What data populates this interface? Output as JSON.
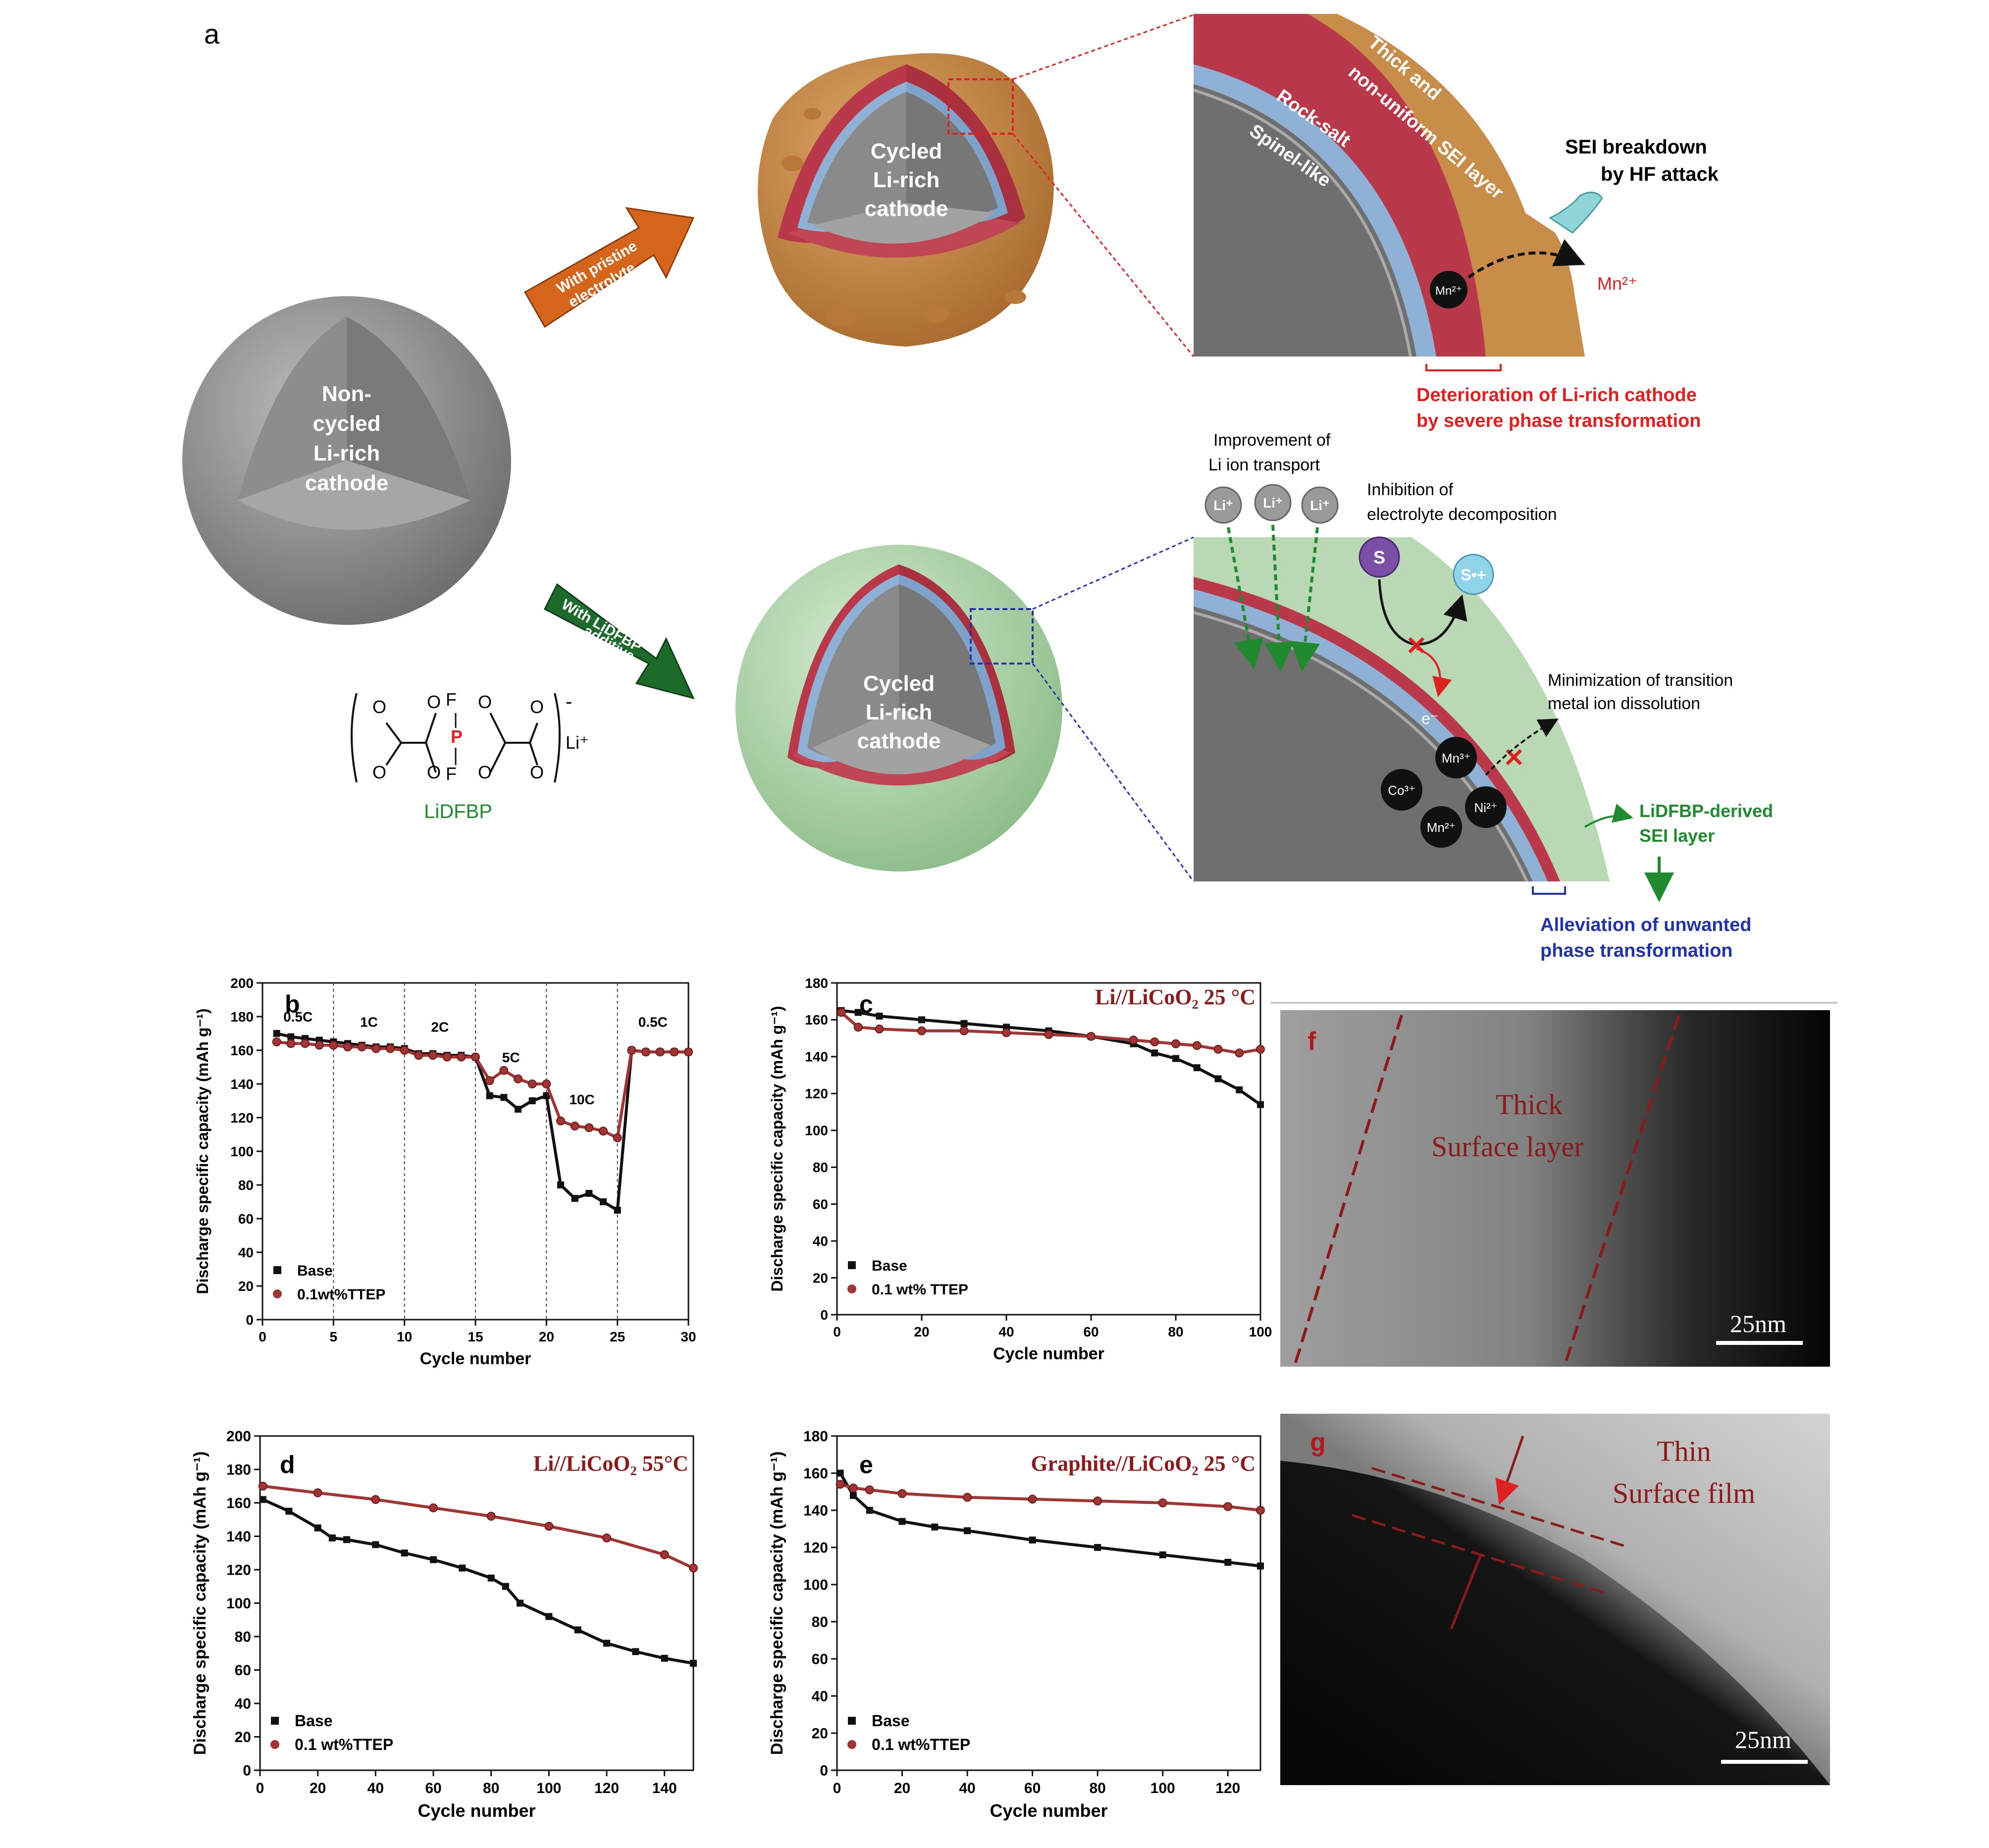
{
  "panel_a": {
    "letter": "a",
    "noncycled_label": [
      "Non-",
      "cycled",
      "Li-rich",
      "cathode"
    ],
    "cycled_label": [
      "Cycled",
      "Li-rich",
      "cathode"
    ],
    "arrow_top": [
      "With pristine",
      "electrolyte"
    ],
    "arrow_bottom": [
      "With LiDFBP",
      "additive"
    ],
    "molecule_name": "LiDFBP",
    "molecule_li": "Li⁺",
    "molecule_minus": "-",
    "zoom_top": {
      "sei": [
        "Thick and",
        "non-uniform SEI layer"
      ],
      "rocksalt": "Rock-salt",
      "spinel": "Spinel-like",
      "mn_ball": "Mn²⁺",
      "sei_breakdown": [
        "SEI breakdown",
        "by HF attack"
      ],
      "mn_out": "Mn²⁺",
      "deterioration": [
        "Deterioration of Li-rich cathode",
        "by severe phase transformation"
      ]
    },
    "zoom_bottom": {
      "li_transport": [
        "Improvement of",
        "Li ion transport"
      ],
      "li_ion": "Li⁺",
      "inhibition": [
        "Inhibition of",
        "electrolyte decomposition"
      ],
      "s": "S",
      "s_plus": "S•+",
      "e_minus": "e⁻",
      "minimization": [
        "Minimization of transition",
        "metal ion dissolution"
      ],
      "ions": [
        "Mn³⁺",
        "Co³⁺",
        "Ni²⁺",
        "Mn²⁺"
      ],
      "sei_layer": [
        "LiDFBP-derived",
        "SEI layer"
      ],
      "alleviation": [
        "Alleviation of unwanted",
        "phase transformation"
      ]
    },
    "colors": {
      "orange_shell": "#c98d4a",
      "green_shell": "#b9d9b5",
      "rocksalt": "#b9394a",
      "spinel": "#8fb1d6",
      "red_text": "#e02020",
      "green_text": "#22a03a",
      "blue_text": "#2233aa"
    }
  },
  "panel_f": {
    "letter": "f",
    "caption": [
      "Thick",
      "Surface layer"
    ],
    "scale": "25nm"
  },
  "panel_g": {
    "letter": "g",
    "caption": [
      "Thin",
      "Surface film"
    ],
    "scale": "25nm"
  },
  "chart_data": [
    {
      "panel": "b",
      "type": "line",
      "xlabel": "Cycle number",
      "ylabel": "Discharge specific capacity (mAh g⁻¹)",
      "xlim": [
        0,
        30
      ],
      "ylim": [
        0,
        200
      ],
      "xticks": [
        0,
        5,
        10,
        15,
        20,
        25,
        30
      ],
      "yticks": [
        0,
        20,
        40,
        60,
        80,
        100,
        120,
        140,
        160,
        180,
        200
      ],
      "rate_labels": [
        {
          "text": "0.5C",
          "x": 2.5,
          "y": 177
        },
        {
          "text": "1C",
          "x": 7.5,
          "y": 174
        },
        {
          "text": "2C",
          "x": 12.5,
          "y": 171
        },
        {
          "text": "5C",
          "x": 17.5,
          "y": 153
        },
        {
          "text": "10C",
          "x": 22.5,
          "y": 128
        },
        {
          "text": "0.5C",
          "x": 27.5,
          "y": 174
        }
      ],
      "dividers": [
        5,
        10,
        15,
        20,
        25
      ],
      "legend": [
        "Base",
        "0.1wt%TTEP"
      ],
      "series": [
        {
          "name": "Base",
          "color": "#111111",
          "marker": "square",
          "x": [
            1,
            2,
            3,
            4,
            5,
            6,
            7,
            8,
            9,
            10,
            11,
            12,
            13,
            14,
            15,
            16,
            17,
            18,
            19,
            20,
            21,
            22,
            23,
            24,
            25,
            26,
            27,
            28,
            29,
            30
          ],
          "values": [
            170,
            168,
            167,
            166,
            165,
            164,
            163,
            162,
            162,
            161,
            158,
            158,
            157,
            157,
            156,
            133,
            132,
            125,
            130,
            133,
            80,
            72,
            75,
            70,
            65,
            160,
            159,
            159,
            159,
            159
          ]
        },
        {
          "name": "0.1wt%TTEP",
          "color": "#a33434",
          "marker": "circle",
          "x": [
            1,
            2,
            3,
            4,
            5,
            6,
            7,
            8,
            9,
            10,
            11,
            12,
            13,
            14,
            15,
            16,
            17,
            18,
            19,
            20,
            21,
            22,
            23,
            24,
            25,
            26,
            27,
            28,
            29,
            30
          ],
          "values": [
            165,
            164,
            164,
            163,
            163,
            162,
            162,
            161,
            161,
            160,
            157,
            157,
            156,
            156,
            156,
            142,
            148,
            143,
            140,
            140,
            118,
            115,
            114,
            112,
            108,
            160,
            159,
            159,
            159,
            159
          ]
        }
      ]
    },
    {
      "panel": "c",
      "type": "line",
      "title": "Li//LiCoO₂ 25 °C",
      "xlabel": "Cycle number",
      "ylabel": "Discharge specific capacity (mAh g⁻¹)",
      "xlim": [
        0,
        100
      ],
      "ylim": [
        0,
        180
      ],
      "xticks": [
        0,
        20,
        40,
        60,
        80,
        100
      ],
      "yticks": [
        0,
        20,
        40,
        60,
        80,
        100,
        120,
        140,
        160,
        180
      ],
      "legend": [
        "Base",
        "0.1 wt% TTEP"
      ],
      "series": [
        {
          "name": "Base",
          "color": "#111111",
          "x": [
            1,
            5,
            10,
            20,
            30,
            40,
            50,
            60,
            70,
            75,
            80,
            85,
            90,
            95,
            100
          ],
          "values": [
            165,
            164,
            162,
            160,
            158,
            156,
            154,
            151,
            147,
            142,
            139,
            134,
            128,
            122,
            114
          ]
        },
        {
          "name": "0.1 wt% TTEP",
          "color": "#a33434",
          "x": [
            1,
            5,
            10,
            20,
            30,
            40,
            50,
            60,
            70,
            75,
            80,
            85,
            90,
            95,
            100
          ],
          "values": [
            164,
            156,
            155,
            154,
            154,
            153,
            152,
            151,
            149,
            148,
            147,
            146,
            144,
            142,
            144
          ]
        }
      ]
    },
    {
      "panel": "d",
      "type": "line",
      "title": "Li//LiCoO₂ 55°C",
      "xlabel": "Cycle number",
      "ylabel": "Discharge specific capacity (mAh g⁻¹)",
      "xlim": [
        0,
        150
      ],
      "ylim": [
        0,
        200
      ],
      "xticks": [
        0,
        20,
        40,
        60,
        80,
        100,
        120,
        140
      ],
      "yticks": [
        0,
        20,
        40,
        60,
        80,
        100,
        120,
        140,
        160,
        180,
        200
      ],
      "legend": [
        "Base",
        "0.1 wt%TTEP"
      ],
      "series": [
        {
          "name": "Base",
          "color": "#111111",
          "x": [
            1,
            10,
            20,
            25,
            30,
            40,
            50,
            60,
            70,
            80,
            85,
            90,
            100,
            110,
            120,
            130,
            140,
            150
          ],
          "values": [
            162,
            155,
            145,
            139,
            138,
            135,
            130,
            126,
            121,
            115,
            110,
            100,
            92,
            84,
            76,
            71,
            67,
            64
          ]
        },
        {
          "name": "0.1 wt%TTEP",
          "color": "#a33434",
          "x": [
            1,
            20,
            40,
            60,
            80,
            100,
            120,
            140,
            150
          ],
          "values": [
            170,
            166,
            162,
            157,
            152,
            146,
            139,
            129,
            121
          ]
        }
      ]
    },
    {
      "panel": "e",
      "type": "line",
      "title": "Graphite//LiCoO₂ 25 °C",
      "xlabel": "Cycle number",
      "ylabel": "Discharge specific capacity (mAh g⁻¹)",
      "xlim": [
        0,
        130
      ],
      "ylim": [
        0,
        180
      ],
      "xticks": [
        0,
        20,
        40,
        60,
        80,
        100,
        120
      ],
      "yticks": [
        0,
        20,
        40,
        60,
        80,
        100,
        120,
        140,
        160,
        180
      ],
      "legend": [
        "Base",
        "0.1 wt%TTEP"
      ],
      "series": [
        {
          "name": "Base",
          "color": "#111111",
          "x": [
            1,
            5,
            10,
            20,
            30,
            40,
            60,
            80,
            100,
            120,
            130
          ],
          "values": [
            160,
            148,
            140,
            134,
            131,
            129,
            124,
            120,
            116,
            112,
            110
          ]
        },
        {
          "name": "0.1 wt%TTEP",
          "color": "#a33434",
          "x": [
            1,
            5,
            10,
            20,
            40,
            60,
            80,
            100,
            120,
            130
          ],
          "values": [
            154,
            152,
            151,
            149,
            147,
            146,
            145,
            144,
            142,
            140
          ]
        }
      ]
    }
  ]
}
